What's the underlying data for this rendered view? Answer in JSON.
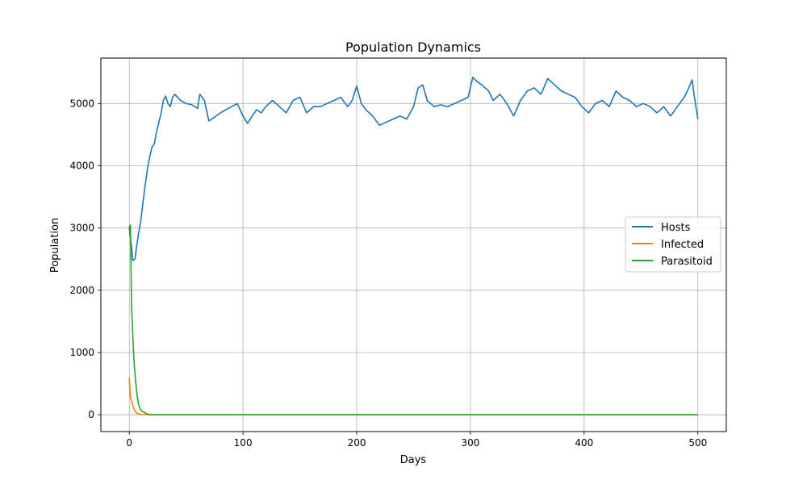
{
  "chart_data": {
    "type": "line",
    "title": "Population Dynamics",
    "xlabel": "Days",
    "ylabel": "Population",
    "xlim": [
      -25,
      525
    ],
    "ylim": [
      -270,
      5730
    ],
    "xticks": [
      0,
      100,
      200,
      300,
      400,
      500
    ],
    "yticks": [
      0,
      1000,
      2000,
      3000,
      4000,
      5000
    ],
    "grid": true,
    "legend_position": "center-right",
    "series": [
      {
        "name": "Hosts",
        "color": "#1f77b4",
        "x": [
          0,
          2,
          3,
          5,
          6,
          8,
          10,
          12,
          14,
          16,
          18,
          20,
          22,
          24,
          26,
          28,
          30,
          32,
          34,
          36,
          38,
          40,
          45,
          50,
          55,
          60,
          62,
          66,
          70,
          75,
          80,
          85,
          90,
          95,
          100,
          104,
          108,
          112,
          116,
          120,
          126,
          132,
          138,
          144,
          150,
          156,
          162,
          168,
          174,
          180,
          186,
          192,
          196,
          200,
          204,
          208,
          214,
          220,
          226,
          232,
          238,
          244,
          250,
          254,
          258,
          262,
          268,
          274,
          280,
          286,
          292,
          298,
          302,
          306,
          310,
          316,
          320,
          326,
          332,
          338,
          344,
          350,
          356,
          362,
          368,
          374,
          380,
          386,
          392,
          398,
          404,
          410,
          416,
          422,
          428,
          434,
          440,
          446,
          452,
          458,
          464,
          470,
          476,
          482,
          488,
          492,
          495,
          497,
          500
        ],
        "values": [
          3000,
          2700,
          2480,
          2500,
          2650,
          2900,
          3100,
          3400,
          3700,
          3950,
          4150,
          4300,
          4350,
          4550,
          4700,
          4850,
          5050,
          5120,
          5000,
          4950,
          5100,
          5150,
          5050,
          5000,
          4980,
          4920,
          5150,
          5050,
          4720,
          4780,
          4850,
          4900,
          4950,
          5000,
          4800,
          4680,
          4800,
          4900,
          4850,
          4950,
          5050,
          4950,
          4850,
          5050,
          5100,
          4850,
          4950,
          4950,
          5000,
          5050,
          5100,
          4950,
          5050,
          5280,
          5000,
          4900,
          4800,
          4650,
          4700,
          4750,
          4800,
          4750,
          4950,
          5250,
          5300,
          5050,
          4950,
          4980,
          4950,
          5000,
          5050,
          5100,
          5420,
          5350,
          5300,
          5200,
          5050,
          5150,
          5000,
          4800,
          5050,
          5200,
          5250,
          5150,
          5400,
          5300,
          5200,
          5150,
          5100,
          4950,
          4850,
          5000,
          5050,
          4950,
          5200,
          5100,
          5050,
          4950,
          5000,
          4950,
          4850,
          4950,
          4800,
          4950,
          5100,
          5250,
          5380,
          5100,
          4750
        ]
      },
      {
        "name": "Infected",
        "color": "#ff7f0e",
        "x": [
          0,
          1,
          2,
          3,
          4,
          5,
          6,
          8,
          10,
          12,
          15,
          20,
          30,
          100,
          200,
          300,
          400,
          500
        ],
        "values": [
          600,
          280,
          220,
          150,
          100,
          60,
          35,
          15,
          6,
          2,
          1,
          0,
          0,
          0,
          0,
          0,
          0,
          0
        ]
      },
      {
        "name": "Parasitoid",
        "color": "#2ca02c",
        "x": [
          0,
          1,
          2,
          3,
          4,
          5,
          6,
          7,
          8,
          9,
          10,
          12,
          14,
          16,
          20,
          30,
          100,
          200,
          300,
          400,
          500
        ],
        "values": [
          3000,
          3050,
          1750,
          1300,
          900,
          650,
          450,
          300,
          180,
          120,
          80,
          50,
          30,
          10,
          0,
          0,
          0,
          0,
          0,
          0,
          0
        ]
      }
    ]
  }
}
